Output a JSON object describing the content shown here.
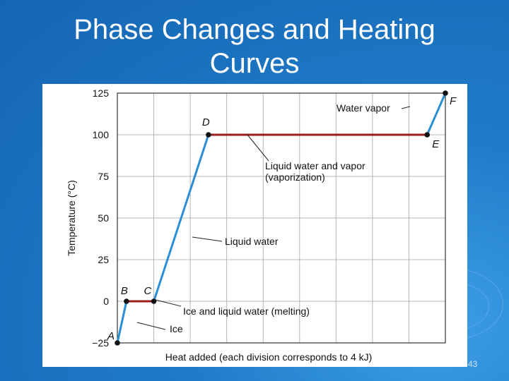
{
  "slide": {
    "title_line1": "Phase Changes and Heating",
    "title_line2": "Curves",
    "page_number": "43"
  },
  "chart_data": {
    "type": "line",
    "title": "",
    "xlabel": "Heat added (each division corresponds to 4 kJ)",
    "ylabel": "Temperature (°C)",
    "ylim": [
      -25,
      125
    ],
    "y_ticks": [
      125,
      100,
      75,
      50,
      25,
      0,
      -25
    ],
    "y_tick_labels": [
      "125",
      "100",
      "75",
      "50",
      "25",
      "0",
      "−25"
    ],
    "xlim": [
      0,
      36
    ],
    "x_divisions_kJ": 4,
    "grid": true,
    "series": [
      {
        "x": [
          0,
          1,
          4,
          10,
          34,
          36
        ],
        "y": [
          -25,
          0,
          0,
          100,
          100,
          125
        ]
      }
    ],
    "points": [
      {
        "label": "A",
        "x": 0,
        "y": -25
      },
      {
        "label": "B",
        "x": 1,
        "y": 0
      },
      {
        "label": "C",
        "x": 4,
        "y": 0
      },
      {
        "label": "D",
        "x": 10,
        "y": 100
      },
      {
        "label": "E",
        "x": 34,
        "y": 100
      },
      {
        "label": "F",
        "x": 36,
        "y": 125
      }
    ],
    "annotations": [
      {
        "text": "Ice"
      },
      {
        "text": "Ice and liquid water (melting)"
      },
      {
        "text": "Liquid water"
      },
      {
        "text": "Liquid water and vapor"
      },
      {
        "text": "(vaporization)"
      },
      {
        "text": "Water vapor"
      }
    ],
    "colors": {
      "segment": "#2a8fd6",
      "plateau": "#9b1b1b",
      "grid": "#b5b5b5"
    }
  }
}
